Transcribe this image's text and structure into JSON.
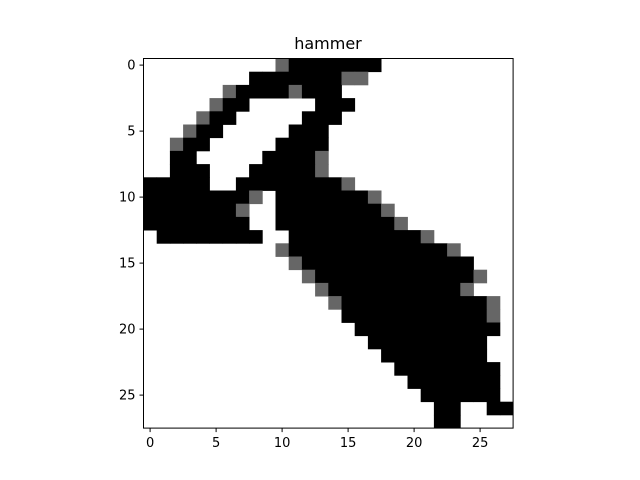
{
  "chart_data": {
    "type": "heatmap",
    "title": "hammer",
    "xlabel": "",
    "ylabel": "",
    "width": 28,
    "height": 28,
    "xlim": [
      -0.5,
      27.5
    ],
    "ylim": [
      27.5,
      -0.5
    ],
    "x_ticks": [
      0,
      5,
      10,
      15,
      20,
      25
    ],
    "y_ticks": [
      0,
      5,
      10,
      15,
      20,
      25
    ],
    "grid": false,
    "colormap": "gray_r",
    "colors": {
      "empty": "#ffffff",
      "edge": "#666666",
      "filled": "#000000"
    },
    "legend": "",
    "value_legend": "0 = white, 1 = gray, 2 = black",
    "pixels": [
      "..........12222222..........",
      "........222222211...........",
      "......122221222.............",
      ".....122.....222............",
      "....122.....222.............",
      "...122.....222..............",
      "..122.....2222..............",
      "..22.....22221..............",
      "..222...222221..............",
      "22222..222222221............",
      "222222221.22222221..........",
      "22222221..222222221.........",
      "22222222..2222222221........",
      ".22222222..22222222221......",
      "..........12222222222221....",
      "...........12222222222222...",
      "............12222222222221..",
      ".............122222222221...",
      "..............1222222222221.",
      "...............222222222221.",
      "................22222222222.",
      ".................222222222..",
      "..................22222222..",
      "...................22222222.",
      "....................2222222.",
      ".....................222222.",
      "......................22..22",
      "......................22...."
    ]
  }
}
